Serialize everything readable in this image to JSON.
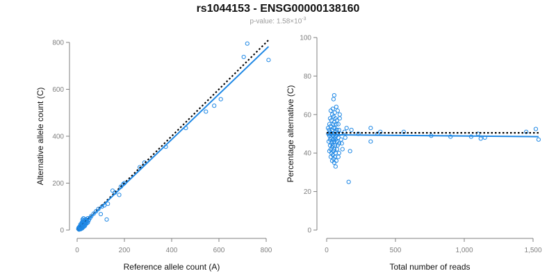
{
  "title": "rs1044153 - ENSG00000138160",
  "subtitle": {
    "prefix": "p-value: 1.58×10",
    "exponent": "-3"
  },
  "colors": {
    "points": "#1f88e5",
    "fit": "#1f88e5",
    "reference": "#000000",
    "axis": "#7f7f7f"
  },
  "chart_data": [
    {
      "type": "scatter",
      "xlabel": "Reference allele count (A)",
      "ylabel": "Alternative allele count (C)",
      "xlim": [
        0,
        800
      ],
      "ylim": [
        0,
        800
      ],
      "xticks": [
        0,
        200,
        400,
        600,
        800
      ],
      "yticks": [
        0,
        200,
        400,
        600,
        800
      ],
      "xtick_labels": [
        "0",
        "200",
        "400",
        "600",
        "800"
      ],
      "ytick_labels": [
        "0",
        "200",
        "400",
        "600",
        "800"
      ],
      "points": [
        [
          810,
          725
        ],
        [
          720,
          795
        ],
        [
          705,
          738
        ],
        [
          608,
          558
        ],
        [
          580,
          530
        ],
        [
          545,
          505
        ],
        [
          460,
          435
        ],
        [
          375,
          355
        ],
        [
          285,
          288
        ],
        [
          265,
          268
        ],
        [
          200,
          200
        ],
        [
          195,
          196
        ],
        [
          185,
          185
        ],
        [
          178,
          150
        ],
        [
          160,
          160
        ],
        [
          150,
          168
        ],
        [
          130,
          112
        ],
        [
          125,
          45
        ],
        [
          115,
          105
        ],
        [
          105,
          100
        ],
        [
          100,
          68
        ],
        [
          90,
          90
        ],
        [
          80,
          80
        ],
        [
          70,
          70
        ],
        [
          60,
          60
        ],
        [
          55,
          52
        ],
        [
          50,
          45
        ],
        [
          48,
          40
        ],
        [
          45,
          50
        ],
        [
          42,
          38
        ],
        [
          40,
          35
        ],
        [
          38,
          42
        ],
        [
          36,
          30
        ],
        [
          34,
          36
        ],
        [
          32,
          40
        ],
        [
          30,
          28
        ],
        [
          28,
          33
        ],
        [
          27,
          50
        ],
        [
          26,
          22
        ],
        [
          25,
          32
        ],
        [
          24,
          26
        ],
        [
          23,
          45
        ],
        [
          22,
          30
        ],
        [
          21,
          18
        ],
        [
          20,
          25
        ],
        [
          19,
          28
        ],
        [
          18,
          20
        ],
        [
          17,
          22
        ],
        [
          16,
          15
        ],
        [
          15,
          18
        ],
        [
          14,
          24
        ],
        [
          13,
          12
        ],
        [
          12,
          16
        ],
        [
          11,
          10
        ],
        [
          10,
          14
        ],
        [
          9,
          8
        ],
        [
          8,
          12
        ],
        [
          7,
          6
        ],
        [
          6,
          9
        ],
        [
          5,
          5
        ],
        [
          20,
          12
        ],
        [
          25,
          15
        ],
        [
          30,
          20
        ],
        [
          35,
          25
        ],
        [
          40,
          28
        ],
        [
          45,
          32
        ],
        [
          33,
          18
        ],
        [
          28,
          14
        ],
        [
          22,
          8
        ],
        [
          18,
          6
        ],
        [
          15,
          4
        ],
        [
          12,
          5
        ],
        [
          10,
          3
        ],
        [
          8,
          2
        ],
        [
          36,
          46
        ],
        [
          31,
          37
        ],
        [
          26,
          41
        ],
        [
          24,
          35
        ],
        [
          20,
          32
        ]
      ],
      "fit_line": [
        [
          0,
          0
        ],
        [
          810,
          782
        ]
      ],
      "reference_line": [
        [
          0,
          0
        ],
        [
          810,
          810
        ]
      ]
    },
    {
      "type": "scatter",
      "xlabel": "Total number of reads",
      "ylabel": "Percentage alternative (C)",
      "xlim": [
        0,
        1500
      ],
      "ylim": [
        0,
        100
      ],
      "xticks": [
        0,
        500,
        1000,
        1500
      ],
      "yticks": [
        0,
        20,
        40,
        60,
        80,
        100
      ],
      "xtick_labels": [
        "0",
        "500",
        "1,000",
        "1,500"
      ],
      "ytick_labels": [
        "0",
        "20",
        "40",
        "60",
        "80",
        "100"
      ],
      "points": [
        [
          1540,
          47
        ],
        [
          1520,
          52.5
        ],
        [
          1450,
          51
        ],
        [
          1150,
          48
        ],
        [
          1120,
          47.5
        ],
        [
          1100,
          50
        ],
        [
          1050,
          48.5
        ],
        [
          900,
          48.5
        ],
        [
          760,
          49
        ],
        [
          560,
          51
        ],
        [
          390,
          51
        ],
        [
          370,
          50
        ],
        [
          320,
          53
        ],
        [
          320,
          46
        ],
        [
          230,
          50
        ],
        [
          180,
          52
        ],
        [
          160,
          25
        ],
        [
          170,
          41
        ],
        [
          145,
          53
        ],
        [
          135,
          48
        ],
        [
          130,
          51
        ],
        [
          115,
          42
        ],
        [
          110,
          45
        ],
        [
          105,
          47
        ],
        [
          100,
          50
        ],
        [
          95,
          58
        ],
        [
          95,
          60
        ],
        [
          90,
          52
        ],
        [
          90,
          45
        ],
        [
          90,
          40
        ],
        [
          85,
          55
        ],
        [
          85,
          48
        ],
        [
          85,
          38
        ],
        [
          80,
          62
        ],
        [
          80,
          50
        ],
        [
          80,
          44
        ],
        [
          75,
          57
        ],
        [
          75,
          52
        ],
        [
          75,
          46
        ],
        [
          75,
          42
        ],
        [
          70,
          64
        ],
        [
          70,
          55
        ],
        [
          70,
          49
        ],
        [
          70,
          36
        ],
        [
          65,
          58
        ],
        [
          65,
          51
        ],
        [
          65,
          47
        ],
        [
          65,
          40
        ],
        [
          65,
          33
        ],
        [
          60,
          61
        ],
        [
          60,
          53
        ],
        [
          60,
          48
        ],
        [
          60,
          44
        ],
        [
          60,
          38
        ],
        [
          55,
          70
        ],
        [
          55,
          56
        ],
        [
          55,
          50
        ],
        [
          55,
          46
        ],
        [
          55,
          42
        ],
        [
          55,
          35
        ],
        [
          50,
          68
        ],
        [
          50,
          59
        ],
        [
          50,
          53
        ],
        [
          50,
          47
        ],
        [
          50,
          41
        ],
        [
          50,
          37
        ],
        [
          45,
          63
        ],
        [
          45,
          55
        ],
        [
          45,
          49
        ],
        [
          45,
          44
        ],
        [
          45,
          39
        ],
        [
          40,
          60
        ],
        [
          40,
          52
        ],
        [
          40,
          46
        ],
        [
          40,
          43
        ],
        [
          40,
          36
        ],
        [
          35,
          57
        ],
        [
          35,
          50
        ],
        [
          35,
          45
        ],
        [
          35,
          40
        ],
        [
          30,
          62
        ],
        [
          30,
          54
        ],
        [
          30,
          48
        ],
        [
          30,
          42
        ],
        [
          30,
          38
        ],
        [
          25,
          58
        ],
        [
          25,
          51
        ],
        [
          25,
          47
        ],
        [
          25,
          44
        ],
        [
          20,
          55
        ],
        [
          20,
          49
        ],
        [
          20,
          41
        ],
        [
          18,
          52
        ],
        [
          15,
          46
        ],
        [
          12,
          50
        ],
        [
          10,
          53
        ]
      ],
      "fit_line": [
        [
          0,
          49.5
        ],
        [
          1540,
          48.5
        ]
      ],
      "reference_line": [
        [
          0,
          50.5
        ],
        [
          1540,
          50.5
        ]
      ]
    }
  ]
}
